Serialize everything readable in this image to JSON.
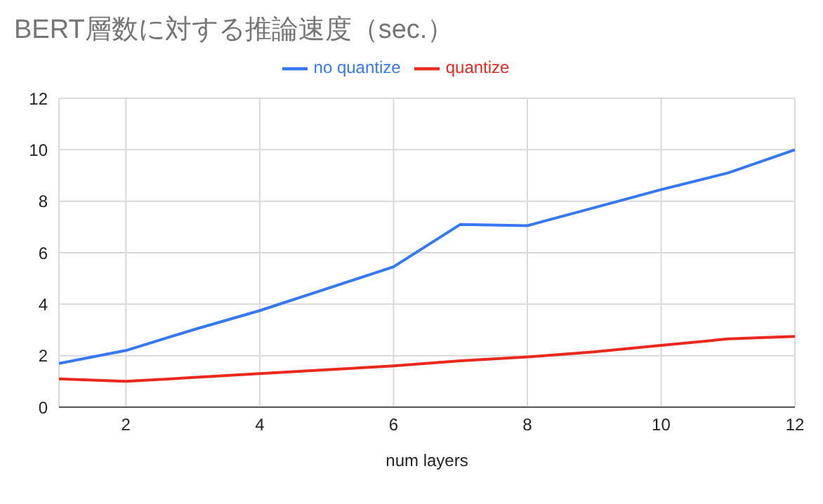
{
  "chart_data": {
    "type": "line",
    "title": "BERT層数に対する推論速度（sec.）",
    "xlabel": "num layers",
    "x": [
      1,
      2,
      3,
      4,
      5,
      6,
      7,
      8,
      9,
      10,
      11,
      12
    ],
    "series": [
      {
        "name": "no quantize",
        "color": "#3478f6",
        "values": [
          1.7,
          2.2,
          3.0,
          3.75,
          4.6,
          5.45,
          7.1,
          7.05,
          7.75,
          8.45,
          9.1,
          10.0
        ]
      },
      {
        "name": "quantize",
        "color": "#e8291c",
        "values": [
          1.1,
          1.0,
          1.15,
          1.3,
          1.45,
          1.6,
          1.8,
          1.95,
          2.15,
          2.4,
          2.65,
          2.75
        ]
      }
    ],
    "xlim": [
      1,
      12
    ],
    "xticks": [
      2,
      4,
      6,
      8,
      10,
      12
    ],
    "ylim": [
      0,
      12
    ],
    "yticks": [
      0,
      2,
      4,
      6,
      8,
      10,
      12
    ],
    "grid": true,
    "legend": "top",
    "marker": "none",
    "line_style": "solid"
  }
}
